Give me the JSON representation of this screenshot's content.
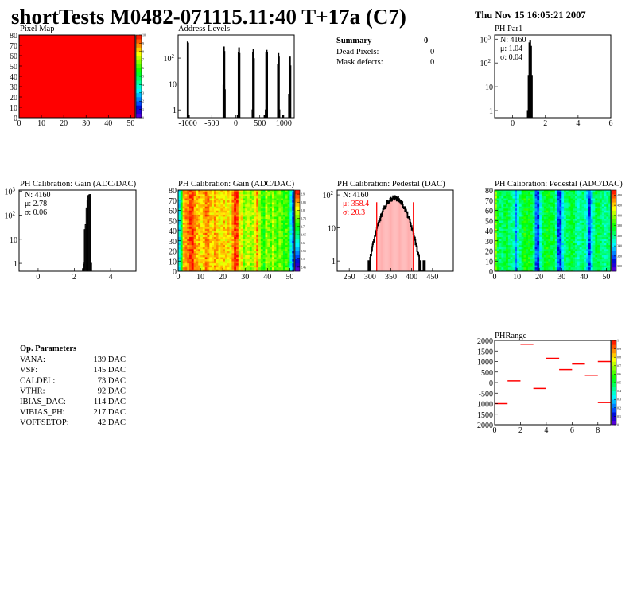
{
  "header": {
    "title": "shortTests M0482-071115.11:40 T+17a (C7)",
    "date": "Thu Nov 15 16:05:21 2007"
  },
  "summary": {
    "title": "Summary",
    "value": "0",
    "rows": [
      {
        "label": "Dead Pixels:",
        "value": "0"
      },
      {
        "label": "Mask defects:",
        "value": "0"
      }
    ]
  },
  "op_parameters": {
    "title": "Op. Parameters",
    "rows": [
      {
        "label": "VANA:",
        "value": "139 DAC"
      },
      {
        "label": "VSF:",
        "value": "145 DAC"
      },
      {
        "label": "CALDEL:",
        "value": "73 DAC"
      },
      {
        "label": "VTHR:",
        "value": "92 DAC"
      },
      {
        "label": "IBIAS_DAC:",
        "value": "114 DAC"
      },
      {
        "label": "VIBIAS_PH:",
        "value": "217 DAC"
      },
      {
        "label": "VOFFSETOP:",
        "value": "42 DAC"
      }
    ]
  },
  "colors": {
    "hist_line": "#000000",
    "fit_red": "#ff0000",
    "pixel_map": "#ff0000"
  },
  "chart_data": [
    {
      "id": "pixel-map",
      "type": "heatmap",
      "title": "Pixel Map",
      "xlim": [
        0,
        52
      ],
      "ylim": [
        0,
        80
      ],
      "xticks": [
        "0",
        "10",
        "20",
        "30",
        "40",
        "50"
      ],
      "yticks": [
        "0",
        "10",
        "20",
        "30",
        "40",
        "50",
        "60",
        "70",
        "80"
      ],
      "uniform_value": 10,
      "zlim": [
        0,
        10
      ],
      "zticks": [
        "0",
        "1",
        "2",
        "3",
        "4",
        "5",
        "6",
        "7",
        "8",
        "9",
        "10"
      ]
    },
    {
      "id": "address-levels",
      "type": "bar",
      "title": "Address Levels",
      "xlim": [
        -1200,
        1217
      ],
      "ylim": [
        0.5,
        780
      ],
      "ylog": true,
      "xticks": [
        "-1000",
        "-500",
        "0",
        "500",
        "1000"
      ],
      "yticks": [
        "1",
        "10",
        "10^2"
      ],
      "bins": [
        [
          -1010,
          420
        ],
        [
          -1000,
          380
        ],
        [
          -985,
          0.6
        ],
        [
          -265,
          9
        ],
        [
          -255,
          270
        ],
        [
          -245,
          180
        ],
        [
          -235,
          6
        ],
        [
          30,
          0.6
        ],
        [
          50,
          170
        ],
        [
          60,
          250
        ],
        [
          70,
          150
        ],
        [
          340,
          1
        ],
        [
          350,
          170
        ],
        [
          360,
          210
        ],
        [
          370,
          95
        ],
        [
          590,
          0.6
        ],
        [
          615,
          1
        ],
        [
          625,
          160
        ],
        [
          635,
          200
        ],
        [
          645,
          170
        ],
        [
          870,
          55
        ],
        [
          880,
          150
        ],
        [
          890,
          110
        ],
        [
          900,
          1
        ],
        [
          970,
          0.6
        ],
        [
          1100,
          4
        ],
        [
          1110,
          80
        ],
        [
          1120,
          110
        ],
        [
          1130,
          50
        ]
      ]
    },
    {
      "id": "ph-par1",
      "type": "bar",
      "title": "PH Par1",
      "xlim": [
        -1.1,
        6
      ],
      "ylim": [
        0.5,
        1500
      ],
      "ylog": true,
      "xticks": [
        "0",
        "2",
        "4",
        "6"
      ],
      "yticks": [
        "1",
        "10",
        "10^2",
        "10^3"
      ],
      "stats": {
        "n": "N: 4160",
        "mean": "μ: 1.04",
        "sigma": "σ: 0.04"
      },
      "binwidth": 0.05,
      "bins": [
        [
          0.9,
          1
        ],
        [
          0.95,
          30
        ],
        [
          1.0,
          700
        ],
        [
          1.05,
          900
        ],
        [
          1.1,
          500
        ],
        [
          1.15,
          30
        ]
      ]
    },
    {
      "id": "gain-hist",
      "type": "bar",
      "title": "PH Calibration: Gain (ADC/DAC)",
      "xlim": [
        -1.05,
        5.4
      ],
      "ylim": [
        0.47,
        1100
      ],
      "ylog": true,
      "xticks": [
        "0",
        "2",
        "4"
      ],
      "yticks": [
        "1",
        "10",
        "10^2",
        "10^3"
      ],
      "stats": {
        "n": "N: 4160",
        "mean": "μ: 2.78",
        "sigma": "σ: 0.06"
      },
      "binwidth": 0.05,
      "bins": [
        [
          2.45,
          0.6
        ],
        [
          2.5,
          1
        ],
        [
          2.55,
          25
        ],
        [
          2.6,
          40
        ],
        [
          2.65,
          200
        ],
        [
          2.7,
          420
        ],
        [
          2.75,
          650
        ],
        [
          2.8,
          700
        ],
        [
          2.85,
          720
        ],
        [
          2.9,
          1
        ]
      ]
    },
    {
      "id": "gain-map",
      "type": "heatmap",
      "title": "PH Calibration: Gain (ADC/DAC)",
      "xlim": [
        0,
        52
      ],
      "ylim": [
        0,
        80
      ],
      "xticks": [
        "0",
        "10",
        "20",
        "30",
        "40",
        "50"
      ],
      "yticks": [
        "0",
        "10",
        "20",
        "30",
        "40",
        "50",
        "60",
        "70",
        "80"
      ],
      "zlim": [
        2.45,
        2.92
      ],
      "zticks": [
        "2.45",
        "2.5",
        "2.55",
        "2.6",
        "2.65",
        "2.7",
        "2.75",
        "2.8",
        "2.85",
        "2.9"
      ],
      "column_means": [
        2.6,
        2.7,
        2.84,
        2.86,
        2.87,
        2.89,
        2.9,
        2.86,
        2.84,
        2.85,
        2.82,
        2.84,
        2.87,
        2.86,
        2.83,
        2.82,
        2.85,
        2.84,
        2.82,
        2.83,
        2.84,
        2.82,
        2.83,
        2.81,
        2.86,
        2.9,
        2.89,
        2.8,
        2.82,
        2.76,
        2.78,
        2.8,
        2.76,
        2.78,
        2.81,
        2.86,
        2.78,
        2.74,
        2.72,
        2.78,
        2.76,
        2.74,
        2.78,
        2.75,
        2.73,
        2.76,
        2.74,
        2.72,
        2.74,
        2.72,
        2.62,
        2.55
      ]
    },
    {
      "id": "pedestal-hist",
      "type": "bar",
      "title": "PH Calibration: Pedestal (DAC)",
      "xlim": [
        221,
        500
      ],
      "ylim": [
        0.49,
        140
      ],
      "ylog": true,
      "xticks": [
        "250",
        "300",
        "350",
        "400",
        "450"
      ],
      "yticks": [
        "1",
        "10",
        "10^2"
      ],
      "stats": {
        "n": "N: 4160",
        "mean": "μ: 358.4",
        "sigma": "σ: 20.3"
      },
      "gaussian": {
        "entries": 4160,
        "mean": 358.4,
        "sigma": 20.3,
        "binwidth": 1
      },
      "fit_range": [
        316,
        404
      ]
    },
    {
      "id": "pedestal-map",
      "type": "heatmap",
      "title": "PH Calibration: Pedestal (ADC/DAC)",
      "xlim": [
        0,
        52
      ],
      "ylim": [
        0,
        80
      ],
      "xticks": [
        "0",
        "10",
        "20",
        "30",
        "40",
        "50"
      ],
      "yticks": [
        "0",
        "10",
        "20",
        "30",
        "40",
        "50",
        "60",
        "70",
        "80"
      ],
      "zlim": [
        295,
        445
      ],
      "zticks": [
        "300",
        "320",
        "340",
        "360",
        "380",
        "400",
        "420",
        "440"
      ],
      "column_means": [
        395,
        370,
        365,
        362,
        368,
        372,
        365,
        360,
        355,
        330,
        350,
        360,
        372,
        378,
        375,
        380,
        370,
        362,
        325,
        320,
        350,
        368,
        372,
        378,
        375,
        370,
        372,
        358,
        322,
        318,
        345,
        360,
        365,
        370,
        372,
        368,
        362,
        355,
        360,
        365,
        358,
        345,
        320,
        340,
        360,
        370,
        372,
        365,
        360,
        358,
        362,
        365
      ]
    },
    {
      "id": "ph-range",
      "type": "heatmap",
      "title": "PHRange",
      "xlim": [
        0,
        9
      ],
      "ylim": [
        -2000,
        2000
      ],
      "xticks": [
        "0",
        "2",
        "4",
        "6",
        "8"
      ],
      "yticks": [
        "2000",
        "1500",
        "1000",
        "500",
        "0",
        "-500",
        "1000",
        "1500",
        "2000"
      ],
      "zlim": [
        0,
        1
      ],
      "zticks": [
        "0",
        "0.1",
        "0.2",
        "0.3",
        "0.4",
        "0.5",
        "0.6",
        "0.7",
        "0.8",
        "0.9",
        "1"
      ],
      "points": [
        [
          0,
          -1000
        ],
        [
          1,
          80
        ],
        [
          2,
          1820
        ],
        [
          3,
          -280
        ],
        [
          4,
          1150
        ],
        [
          5,
          620
        ],
        [
          6,
          880
        ],
        [
          7,
          350
        ],
        [
          8,
          1000
        ],
        [
          8,
          -950
        ]
      ]
    }
  ]
}
